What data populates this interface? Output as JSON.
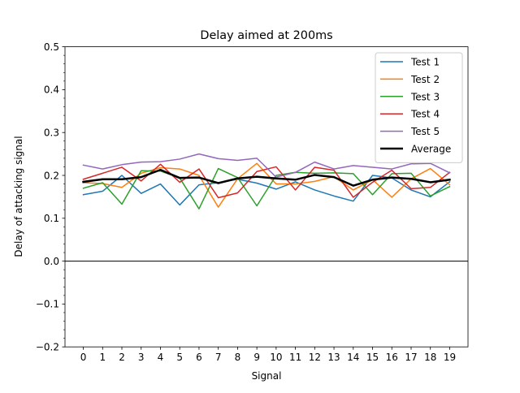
{
  "chart_data": {
    "type": "line",
    "title": "Delay aimed at 200ms",
    "xlabel": "Signal",
    "ylabel": "Delay of attacking signal",
    "x": [
      0,
      1,
      2,
      3,
      4,
      5,
      6,
      7,
      8,
      9,
      10,
      11,
      12,
      13,
      14,
      15,
      16,
      17,
      18,
      19
    ],
    "xlim": [
      -0.95,
      19.95
    ],
    "ylim": [
      -0.2,
      0.5
    ],
    "yticks": [
      -0.2,
      -0.1,
      0.0,
      0.1,
      0.2,
      0.3,
      0.4,
      0.5
    ],
    "ytick_labels": [
      "−0.2",
      "−0.1",
      "0.0",
      "0.1",
      "0.2",
      "0.3",
      "0.4",
      "0.5"
    ],
    "reference_line_y": 0.0,
    "legend_position": "top-right",
    "grid": false,
    "series": [
      {
        "name": "Test 1",
        "color": "#1f77b4",
        "linewidth": 1.5,
        "values": [
          0.155,
          0.163,
          0.2,
          0.158,
          0.18,
          0.131,
          0.178,
          0.183,
          0.191,
          0.182,
          0.168,
          0.185,
          0.166,
          0.152,
          0.14,
          0.2,
          0.194,
          0.166,
          0.15,
          0.185
        ]
      },
      {
        "name": "Test 2",
        "color": "#ff7f0e",
        "linewidth": 1.5,
        "values": [
          0.183,
          0.181,
          0.172,
          0.205,
          0.218,
          0.215,
          0.2,
          0.126,
          0.192,
          0.228,
          0.18,
          0.18,
          0.186,
          0.197,
          0.166,
          0.19,
          0.149,
          0.192,
          0.216,
          0.178
        ]
      },
      {
        "name": "Test 3",
        "color": "#2ca02c",
        "linewidth": 1.5,
        "values": [
          0.17,
          0.183,
          0.133,
          0.211,
          0.21,
          0.194,
          0.122,
          0.216,
          0.195,
          0.129,
          0.2,
          0.207,
          0.205,
          0.206,
          0.204,
          0.155,
          0.204,
          0.205,
          0.152,
          0.174
        ]
      },
      {
        "name": "Test 4",
        "color": "#d62728",
        "linewidth": 1.5,
        "values": [
          0.191,
          0.205,
          0.219,
          0.187,
          0.226,
          0.184,
          0.215,
          0.148,
          0.159,
          0.209,
          0.22,
          0.166,
          0.219,
          0.212,
          0.149,
          0.184,
          0.212,
          0.169,
          0.172,
          0.207
        ]
      },
      {
        "name": "Test 5",
        "color": "#9467bd",
        "linewidth": 1.5,
        "values": [
          0.224,
          0.215,
          0.225,
          0.231,
          0.232,
          0.238,
          0.25,
          0.239,
          0.235,
          0.24,
          0.196,
          0.207,
          0.231,
          0.215,
          0.223,
          0.219,
          0.215,
          0.227,
          0.228,
          0.206
        ]
      },
      {
        "name": "Average",
        "color": "#000000",
        "linewidth": 2.5,
        "values": [
          0.185,
          0.191,
          0.191,
          0.196,
          0.213,
          0.194,
          0.195,
          0.182,
          0.193,
          0.197,
          0.193,
          0.19,
          0.201,
          0.196,
          0.176,
          0.19,
          0.195,
          0.192,
          0.184,
          0.19
        ]
      }
    ]
  }
}
